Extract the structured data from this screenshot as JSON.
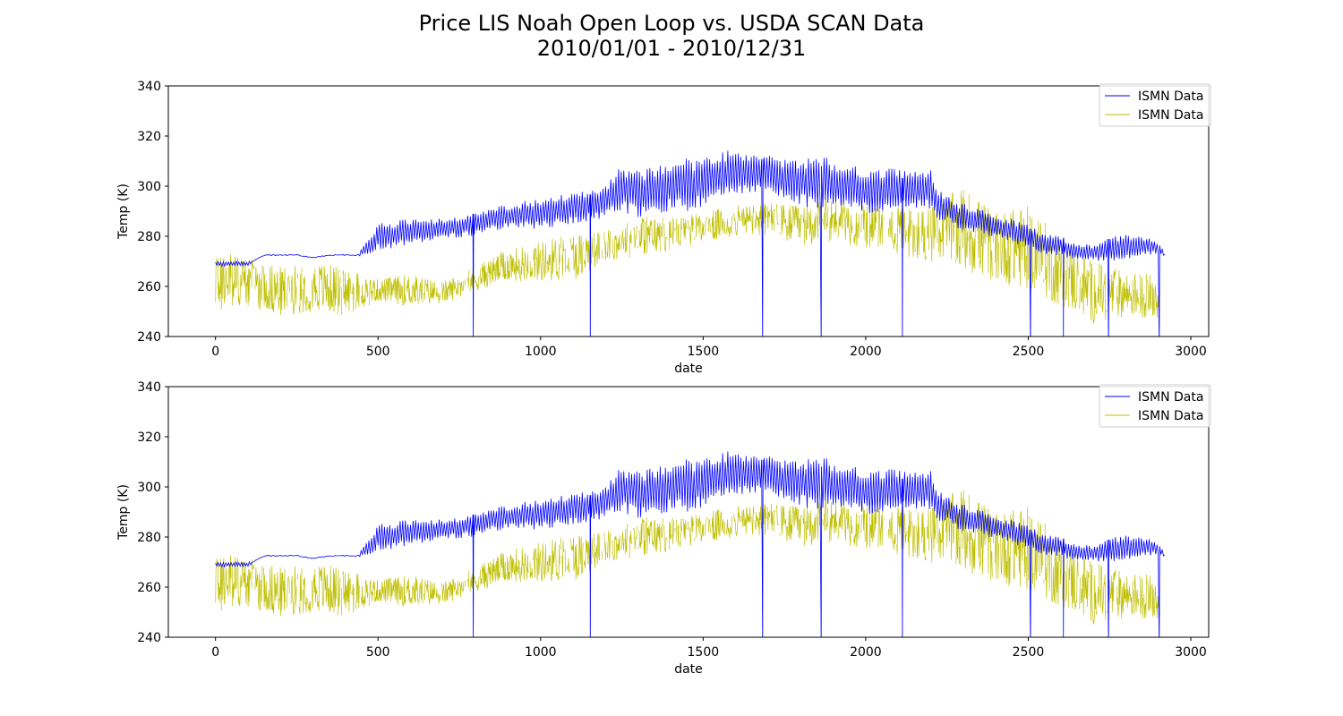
{
  "figure": {
    "title_line1": "Price LIS Noah Open Loop vs. USDA SCAN Data",
    "title_line2": "2010/01/01 - 2010/12/31"
  },
  "chart_data": [
    {
      "type": "line",
      "panel": "top",
      "xlabel": "date",
      "ylabel": "Temp (K)",
      "xlim": [
        -145,
        3055
      ],
      "ylim": [
        240,
        340
      ],
      "xticks": [
        0,
        500,
        1000,
        1500,
        2000,
        2500,
        3000
      ],
      "yticks": [
        240,
        260,
        280,
        300,
        320,
        340
      ],
      "grid": false,
      "legend_position": "top-right",
      "series": [
        {
          "name": "ISMN Data",
          "color": "#0000ff",
          "envelope_x": [
            0,
            60,
            100,
            150,
            250,
            300,
            350,
            440,
            500,
            600,
            700,
            790,
            850,
            900,
            1000,
            1050,
            1100,
            1150,
            1200,
            1250,
            1300,
            1350,
            1400,
            1450,
            1500,
            1550,
            1600,
            1650,
            1700,
            1750,
            1800,
            1850,
            1900,
            1950,
            2000,
            2050,
            2100,
            2150,
            2200,
            2220,
            2280,
            2350,
            2400,
            2450,
            2500,
            2550,
            2600,
            2650,
            2700,
            2750,
            2800,
            2850,
            2900,
            2920
          ],
          "envelope_high": [
            270,
            270,
            270,
            273,
            273,
            272,
            273,
            273,
            285,
            287,
            287,
            289,
            291,
            293,
            295,
            296,
            298,
            299,
            300,
            309,
            306,
            309,
            311,
            311,
            311,
            314,
            315,
            314,
            313,
            311,
            312,
            312,
            311,
            309,
            308,
            307,
            307,
            307,
            307,
            300,
            294,
            291,
            288,
            287,
            285,
            281,
            280,
            277,
            277,
            280,
            281,
            280,
            278,
            273
          ],
          "envelope_low": [
            268,
            268,
            268,
            272,
            272,
            271,
            272,
            272,
            274,
            277,
            279,
            280,
            282,
            283,
            283,
            284,
            285,
            286,
            287,
            290,
            287,
            288,
            290,
            290,
            292,
            295,
            297,
            297,
            298,
            294,
            292,
            291,
            291,
            290,
            289,
            290,
            291,
            291,
            291,
            287,
            283,
            281,
            279,
            277,
            275,
            273,
            272,
            270,
            270,
            270,
            271,
            272,
            273,
            272
          ],
          "dropouts_x": [
            793,
            1153,
            1683,
            1863,
            2113,
            2507,
            2608,
            2747,
            2903
          ]
        },
        {
          "name": "ISMN Data",
          "color": "#bfbf00",
          "range_x": [
            0,
            100,
            200,
            300,
            400,
            500,
            600,
            700,
            800,
            900,
            1000,
            1100,
            1200,
            1300,
            1400,
            1500,
            1600,
            1700,
            1800,
            1900,
            2000,
            2100,
            2200,
            2300,
            2400,
            2500,
            2600,
            2700,
            2800,
            2900
          ],
          "range_high": [
            275,
            272,
            268,
            270,
            268,
            263,
            265,
            262,
            268,
            275,
            278,
            282,
            282,
            288,
            288,
            290,
            292,
            294,
            292,
            296,
            292,
            292,
            292,
            300,
            290,
            292,
            280,
            270,
            266,
            265
          ],
          "range_low": [
            250,
            252,
            248,
            250,
            248,
            254,
            252,
            253,
            258,
            262,
            262,
            262,
            270,
            272,
            274,
            277,
            280,
            280,
            276,
            278,
            275,
            272,
            270,
            265,
            262,
            258,
            252,
            245,
            248,
            247
          ]
        }
      ]
    },
    {
      "type": "line",
      "panel": "bottom",
      "xlabel": "date",
      "ylabel": "Temp (K)",
      "xlim": [
        -145,
        3055
      ],
      "ylim": [
        240,
        340
      ],
      "xticks": [
        0,
        500,
        1000,
        1500,
        2000,
        2500,
        3000
      ],
      "yticks": [
        240,
        260,
        280,
        300,
        320,
        340
      ],
      "grid": false,
      "legend_position": "top-right",
      "series": [
        {
          "name": "ISMN Data",
          "color": "#0000ff",
          "envelope_x": [
            0,
            60,
            100,
            150,
            250,
            300,
            350,
            440,
            500,
            600,
            700,
            790,
            850,
            900,
            1000,
            1050,
            1100,
            1150,
            1200,
            1250,
            1300,
            1350,
            1400,
            1450,
            1500,
            1550,
            1600,
            1650,
            1700,
            1750,
            1800,
            1850,
            1900,
            1950,
            2000,
            2050,
            2100,
            2150,
            2200,
            2220,
            2280,
            2350,
            2400,
            2450,
            2500,
            2550,
            2600,
            2650,
            2700,
            2750,
            2800,
            2850,
            2900,
            2920
          ],
          "envelope_high": [
            270,
            270,
            270,
            273,
            273,
            272,
            273,
            273,
            285,
            287,
            287,
            289,
            291,
            293,
            295,
            296,
            298,
            299,
            300,
            309,
            306,
            309,
            311,
            311,
            311,
            314,
            315,
            314,
            313,
            311,
            312,
            312,
            311,
            309,
            308,
            307,
            307,
            307,
            307,
            300,
            294,
            291,
            288,
            287,
            285,
            281,
            280,
            277,
            277,
            280,
            281,
            280,
            278,
            273
          ],
          "envelope_low": [
            268,
            268,
            268,
            272,
            272,
            271,
            272,
            272,
            274,
            277,
            279,
            280,
            282,
            283,
            283,
            284,
            285,
            286,
            287,
            290,
            287,
            288,
            290,
            290,
            292,
            295,
            297,
            297,
            298,
            294,
            292,
            291,
            291,
            290,
            289,
            290,
            291,
            291,
            291,
            287,
            283,
            281,
            279,
            277,
            275,
            273,
            272,
            270,
            270,
            270,
            271,
            272,
            273,
            272
          ],
          "dropouts_x": [
            793,
            1153,
            1683,
            1863,
            2113,
            2507,
            2608,
            2747,
            2903
          ]
        },
        {
          "name": "ISMN Data",
          "color": "#bfbf00",
          "range_x": [
            0,
            100,
            200,
            300,
            400,
            500,
            600,
            700,
            800,
            900,
            1000,
            1100,
            1200,
            1300,
            1400,
            1500,
            1600,
            1700,
            1800,
            1900,
            2000,
            2100,
            2200,
            2300,
            2400,
            2500,
            2600,
            2700,
            2800,
            2900
          ],
          "range_high": [
            275,
            272,
            268,
            270,
            268,
            263,
            265,
            262,
            268,
            275,
            278,
            282,
            282,
            288,
            288,
            290,
            292,
            294,
            292,
            296,
            292,
            292,
            292,
            300,
            290,
            292,
            280,
            270,
            266,
            265
          ],
          "range_low": [
            250,
            252,
            248,
            250,
            248,
            254,
            252,
            253,
            258,
            262,
            262,
            262,
            270,
            272,
            274,
            277,
            280,
            280,
            276,
            278,
            275,
            272,
            270,
            265,
            262,
            258,
            252,
            245,
            248,
            247
          ]
        }
      ]
    }
  ]
}
